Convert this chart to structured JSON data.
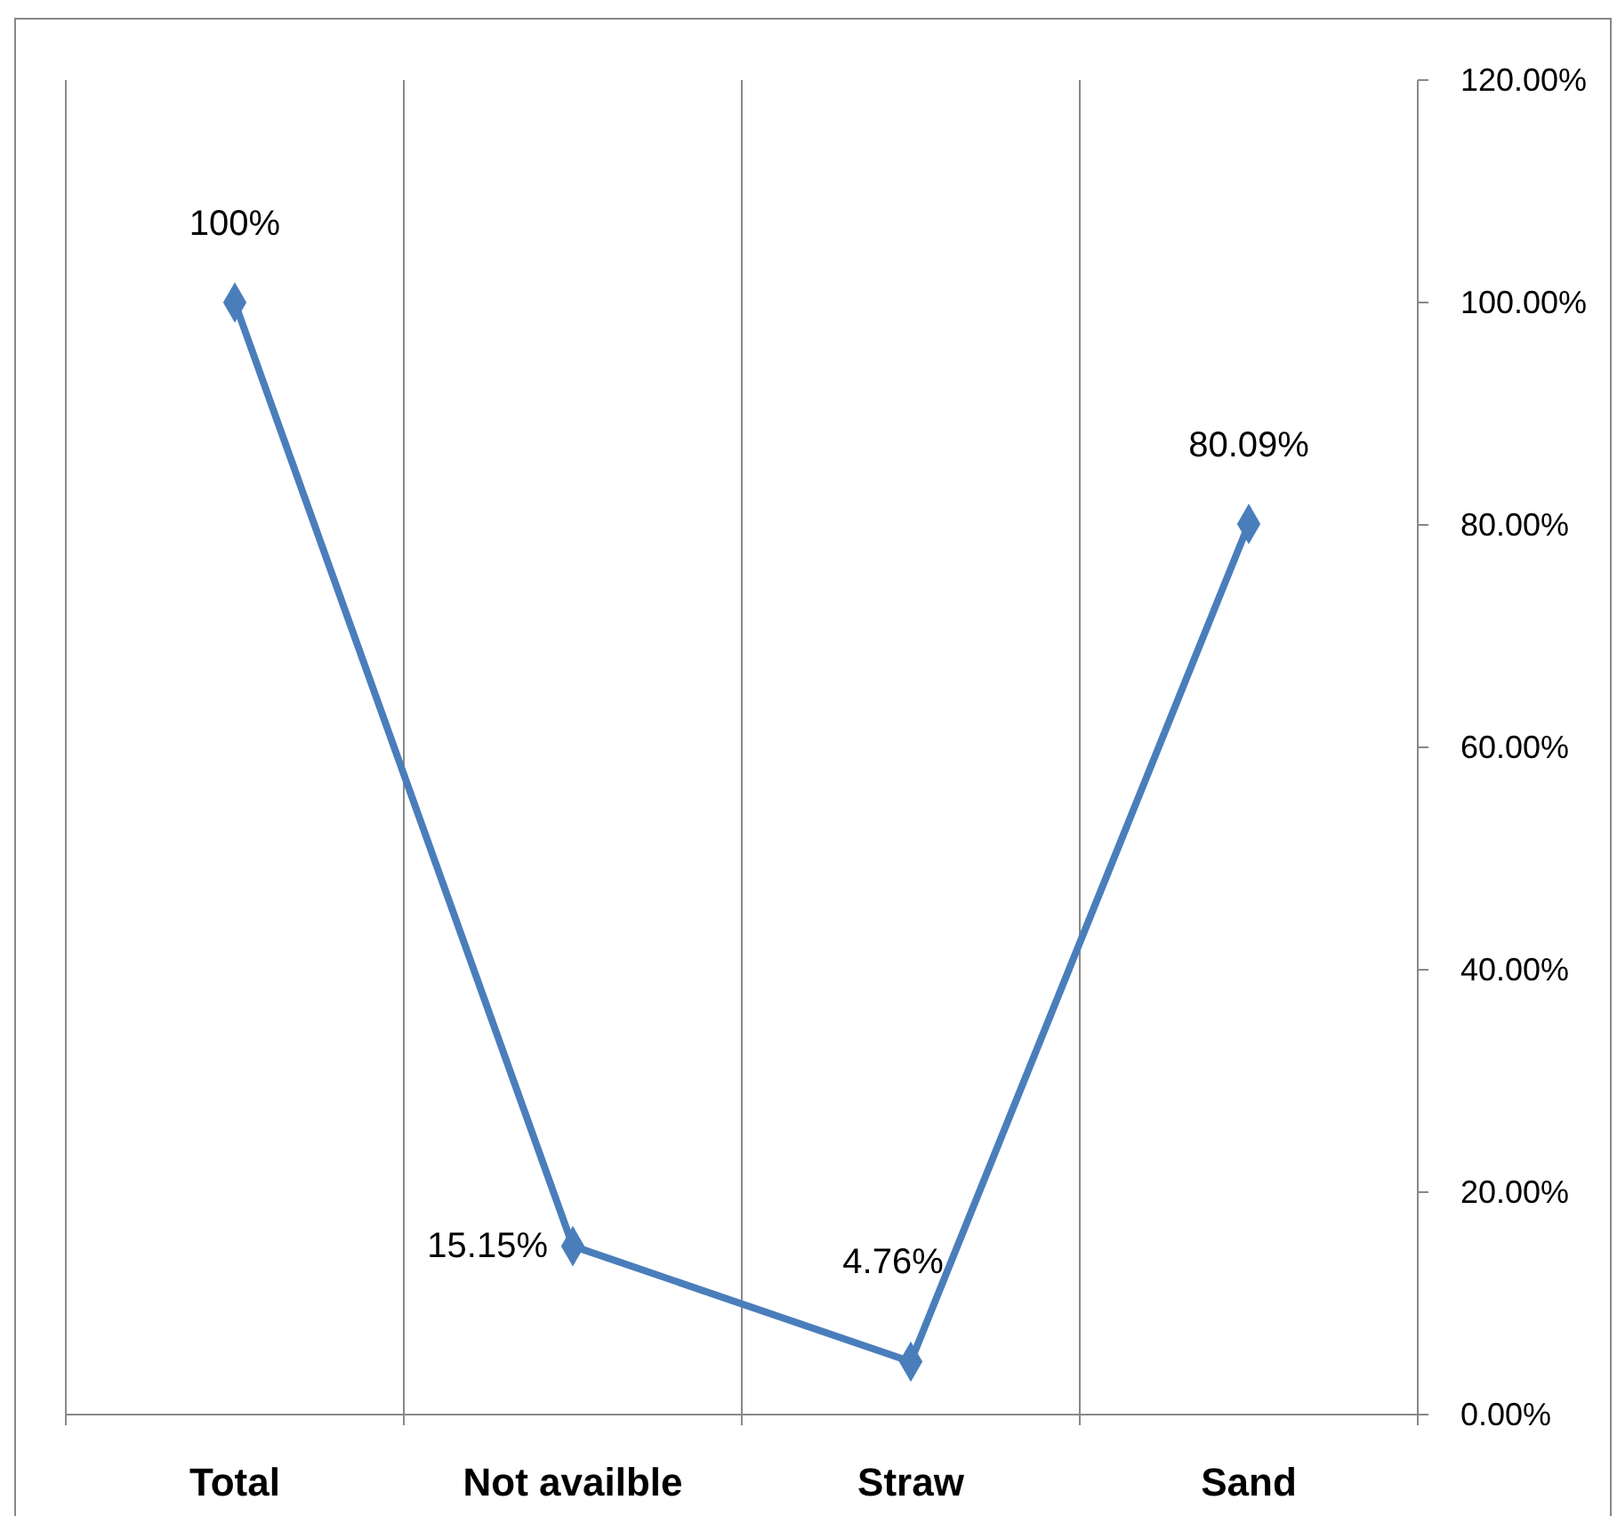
{
  "chart_data": {
    "type": "line",
    "categories": [
      "Total",
      "Not availble",
      "Straw",
      "Sand"
    ],
    "series": [
      {
        "color": "#4a7ebb",
        "values": [
          100,
          15.15,
          4.76,
          80.09
        ],
        "value_labels": [
          "100%",
          "15.15%",
          "4.76%",
          "80.09%"
        ]
      }
    ],
    "ylim": [
      0,
      120
    ],
    "yticks": [
      {
        "value": 0,
        "label": "0.00%"
      },
      {
        "value": 20,
        "label": "20.00%"
      },
      {
        "value": 40,
        "label": "40.00%"
      },
      {
        "value": 60,
        "label": "60.00%"
      },
      {
        "value": 80,
        "label": "80.00%"
      },
      {
        "value": 100,
        "label": "100.00%"
      },
      {
        "value": 120,
        "label": "120.00%"
      }
    ],
    "grid": "x",
    "marker": "diamond",
    "line_style": "solid"
  }
}
